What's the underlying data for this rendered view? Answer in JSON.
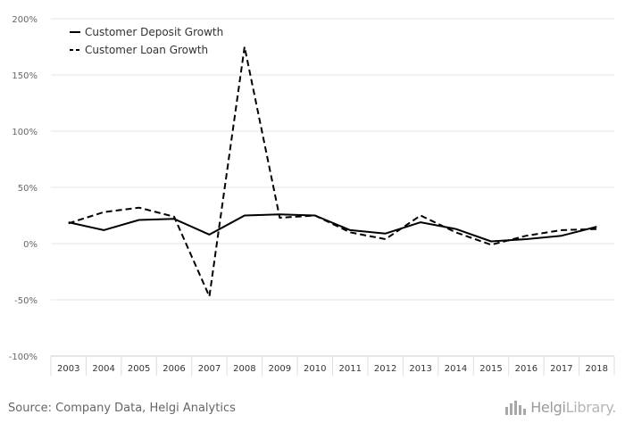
{
  "chart_data": {
    "type": "line",
    "x": [
      "2003",
      "2004",
      "2005",
      "2006",
      "2007",
      "2008",
      "2009",
      "2010",
      "2011",
      "2012",
      "2013",
      "2014",
      "2015",
      "2016",
      "2017",
      "2018"
    ],
    "series": [
      {
        "name": "Customer Deposit Growth",
        "dash": "solid",
        "values": [
          19,
          12,
          21,
          22,
          8,
          25,
          26,
          25,
          12,
          9,
          19,
          13,
          2,
          4,
          7,
          15
        ]
      },
      {
        "name": "Customer Loan Growth",
        "dash": "dashed",
        "values": [
          18,
          28,
          32,
          24,
          -47,
          175,
          23,
          25,
          10,
          4,
          25,
          10,
          -1,
          7,
          12,
          13
        ]
      }
    ],
    "yticks": [
      200,
      150,
      100,
      50,
      0,
      -50,
      -100
    ],
    "ytick_labels": [
      "200%",
      "150%",
      "100%",
      "50%",
      "0%",
      "-50%",
      "-100%"
    ],
    "ylim": [
      -100,
      200
    ],
    "grid": true,
    "legend_position": "top-left",
    "title": "",
    "xlabel": "",
    "ylabel": ""
  },
  "footer": {
    "source": "Source: Company Data, Helgi Analytics",
    "brand_name": "Helgi",
    "brand_suffix": "Library."
  },
  "colors": {
    "line": "#000000",
    "grid": "#e5e5e5",
    "axis_text": "#666666"
  }
}
